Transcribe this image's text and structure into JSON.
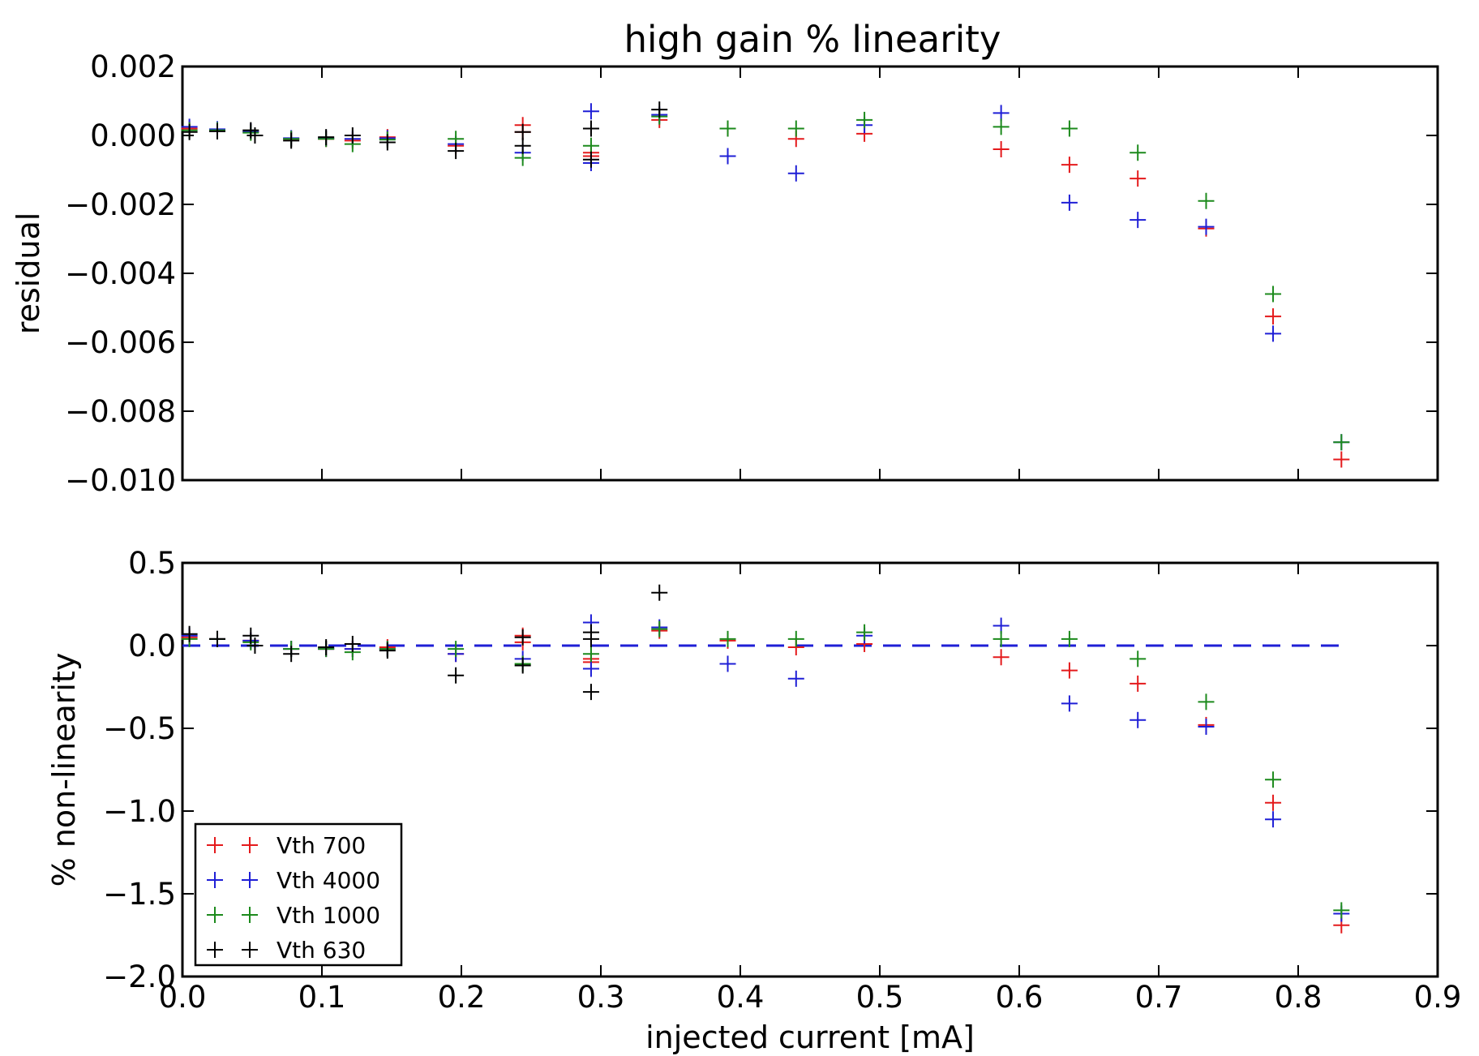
{
  "chart_data": [
    {
      "type": "scatter",
      "title": "high gain % linearity",
      "xlabel": "",
      "ylabel": "residual",
      "xlim": [
        0.0,
        0.9
      ],
      "ylim": [
        -0.01,
        0.002
      ],
      "yticks": [
        "0.002",
        "0.000",
        "−0.002",
        "−0.004",
        "−0.006",
        "−0.008",
        "−0.010"
      ],
      "grid": false,
      "marker": "+",
      "series": [
        {
          "name": "Vth 700",
          "color": "#e41a1c",
          "points": [
            [
              0.005,
              0.0002
            ],
            [
              0.025,
              0.00015
            ],
            [
              0.049,
              0.0001
            ],
            [
              0.078,
              -0.0001
            ],
            [
              0.103,
              -0.0001
            ],
            [
              0.122,
              -0.00015
            ],
            [
              0.147,
              -5e-05
            ],
            [
              0.196,
              -0.0003
            ],
            [
              0.244,
              0.0003
            ],
            [
              0.244,
              0.0001
            ],
            [
              0.293,
              -0.0005
            ],
            [
              0.293,
              -0.0006
            ],
            [
              0.342,
              0.00045
            ],
            [
              0.391,
              0.0002
            ],
            [
              0.44,
              -0.0001
            ],
            [
              0.489,
              5e-05
            ],
            [
              0.587,
              -0.0004
            ],
            [
              0.636,
              -0.00085
            ],
            [
              0.685,
              -0.00125
            ],
            [
              0.734,
              -0.0027
            ],
            [
              0.782,
              -0.00525
            ],
            [
              0.831,
              -0.0094
            ]
          ]
        },
        {
          "name": "Vth 4000",
          "color": "#1f1fd6",
          "points": [
            [
              0.005,
              0.00025
            ],
            [
              0.025,
              0.00018
            ],
            [
              0.049,
              0.00012
            ],
            [
              0.078,
              -8e-05
            ],
            [
              0.103,
              -8e-05
            ],
            [
              0.122,
              -0.0001
            ],
            [
              0.147,
              -8e-05
            ],
            [
              0.196,
              -0.00025
            ],
            [
              0.244,
              -0.0005
            ],
            [
              0.293,
              0.0007
            ],
            [
              0.293,
              -0.0008
            ],
            [
              0.342,
              0.0006
            ],
            [
              0.391,
              -0.0006
            ],
            [
              0.44,
              -0.0011
            ],
            [
              0.489,
              0.0003
            ],
            [
              0.587,
              0.00065
            ],
            [
              0.636,
              -0.00195
            ],
            [
              0.685,
              -0.00245
            ],
            [
              0.734,
              -0.00265
            ],
            [
              0.782,
              -0.00575
            ],
            [
              0.831,
              -0.0089
            ]
          ]
        },
        {
          "name": "Vth 1000",
          "color": "#1c8a1c",
          "points": [
            [
              0.005,
              0.00015
            ],
            [
              0.025,
              0.00015
            ],
            [
              0.049,
              8e-05
            ],
            [
              0.078,
              -0.0001
            ],
            [
              0.103,
              -0.0001
            ],
            [
              0.122,
              -0.00025
            ],
            [
              0.147,
              -0.00012
            ],
            [
              0.196,
              -0.0001
            ],
            [
              0.244,
              -0.00065
            ],
            [
              0.293,
              -0.0003
            ],
            [
              0.342,
              0.00055
            ],
            [
              0.391,
              0.0002
            ],
            [
              0.44,
              0.0002
            ],
            [
              0.489,
              0.00045
            ],
            [
              0.587,
              0.00025
            ],
            [
              0.636,
              0.0002
            ],
            [
              0.685,
              -0.0005
            ],
            [
              0.734,
              -0.0019
            ],
            [
              0.782,
              -0.0046
            ],
            [
              0.831,
              -0.0089
            ]
          ]
        },
        {
          "name": "Vth 630",
          "color": "#000000",
          "points": [
            [
              0.005,
              0.0001
            ],
            [
              0.025,
              0.00012
            ],
            [
              0.049,
              0.00015
            ],
            [
              0.052,
              0.0
            ],
            [
              0.078,
              -0.00015
            ],
            [
              0.103,
              -5e-05
            ],
            [
              0.122,
              0.0
            ],
            [
              0.147,
              -0.0002
            ],
            [
              0.196,
              -0.00045
            ],
            [
              0.244,
              0.0001
            ],
            [
              0.244,
              -0.0003
            ],
            [
              0.293,
              0.0002
            ],
            [
              0.293,
              -0.0007
            ],
            [
              0.342,
              0.00075
            ]
          ]
        }
      ]
    },
    {
      "type": "scatter",
      "title": "",
      "xlabel": "injected current [mA]",
      "ylabel": "% non-linearity",
      "xlim": [
        0.0,
        0.9
      ],
      "ylim": [
        -2.0,
        0.5
      ],
      "xticks": [
        "0.0",
        "0.1",
        "0.2",
        "0.3",
        "0.4",
        "0.5",
        "0.6",
        "0.7",
        "0.8",
        "0.9"
      ],
      "yticks": [
        "0.5",
        "0.0",
        "−0.5",
        "−1.0",
        "−1.5",
        "−2.0"
      ],
      "grid": false,
      "marker": "+",
      "reference_line": {
        "y": 0.0,
        "x_range": [
          0.0,
          0.831
        ],
        "style": "dashed",
        "color": "#1f1fd6"
      },
      "legend": {
        "placement": "lower-left",
        "entries": [
          "Vth 700",
          "Vth 4000",
          "Vth 1000",
          "Vth 630"
        ]
      },
      "series": [
        {
          "name": "Vth 700",
          "color": "#e41a1c",
          "points": [
            [
              0.005,
              0.05
            ],
            [
              0.025,
              0.04
            ],
            [
              0.049,
              0.03
            ],
            [
              0.078,
              -0.02
            ],
            [
              0.103,
              -0.02
            ],
            [
              0.122,
              -0.02
            ],
            [
              0.147,
              -0.01
            ],
            [
              0.196,
              -0.05
            ],
            [
              0.244,
              0.06
            ],
            [
              0.244,
              0.02
            ],
            [
              0.293,
              -0.08
            ],
            [
              0.293,
              -0.1
            ],
            [
              0.342,
              0.09
            ],
            [
              0.391,
              0.03
            ],
            [
              0.44,
              -0.01
            ],
            [
              0.489,
              0.01
            ],
            [
              0.587,
              -0.07
            ],
            [
              0.636,
              -0.15
            ],
            [
              0.685,
              -0.23
            ],
            [
              0.734,
              -0.48
            ],
            [
              0.782,
              -0.95
            ],
            [
              0.831,
              -1.69
            ]
          ]
        },
        {
          "name": "Vth 4000",
          "color": "#1f1fd6",
          "points": [
            [
              0.005,
              0.06
            ],
            [
              0.025,
              0.04
            ],
            [
              0.049,
              0.03
            ],
            [
              0.078,
              -0.02
            ],
            [
              0.103,
              -0.02
            ],
            [
              0.122,
              -0.02
            ],
            [
              0.147,
              -0.02
            ],
            [
              0.196,
              -0.05
            ],
            [
              0.244,
              -0.08
            ],
            [
              0.293,
              0.14
            ],
            [
              0.293,
              -0.14
            ],
            [
              0.342,
              0.11
            ],
            [
              0.391,
              -0.11
            ],
            [
              0.44,
              -0.2
            ],
            [
              0.489,
              0.06
            ],
            [
              0.587,
              0.12
            ],
            [
              0.636,
              -0.35
            ],
            [
              0.685,
              -0.45
            ],
            [
              0.734,
              -0.49
            ],
            [
              0.782,
              -1.05
            ],
            [
              0.831,
              -1.62
            ]
          ]
        },
        {
          "name": "Vth 1000",
          "color": "#1c8a1c",
          "points": [
            [
              0.005,
              0.04
            ],
            [
              0.025,
              0.04
            ],
            [
              0.049,
              0.02
            ],
            [
              0.078,
              -0.02
            ],
            [
              0.103,
              -0.02
            ],
            [
              0.122,
              -0.04
            ],
            [
              0.147,
              -0.02
            ],
            [
              0.196,
              -0.02
            ],
            [
              0.244,
              -0.11
            ],
            [
              0.293,
              -0.05
            ],
            [
              0.342,
              0.1
            ],
            [
              0.391,
              0.04
            ],
            [
              0.44,
              0.04
            ],
            [
              0.489,
              0.08
            ],
            [
              0.587,
              0.04
            ],
            [
              0.636,
              0.04
            ],
            [
              0.685,
              -0.08
            ],
            [
              0.734,
              -0.34
            ],
            [
              0.782,
              -0.81
            ],
            [
              0.831,
              -1.6
            ]
          ]
        },
        {
          "name": "Vth 630",
          "color": "#000000",
          "points": [
            [
              0.005,
              0.07
            ],
            [
              0.025,
              0.04
            ],
            [
              0.049,
              0.06
            ],
            [
              0.052,
              0.0
            ],
            [
              0.078,
              -0.05
            ],
            [
              0.103,
              -0.01
            ],
            [
              0.122,
              0.01
            ],
            [
              0.147,
              -0.03
            ],
            [
              0.196,
              -0.18
            ],
            [
              0.244,
              0.05
            ],
            [
              0.244,
              -0.12
            ],
            [
              0.293,
              0.08
            ],
            [
              0.293,
              0.04
            ],
            [
              0.293,
              -0.28
            ],
            [
              0.342,
              0.32
            ]
          ]
        }
      ]
    }
  ]
}
